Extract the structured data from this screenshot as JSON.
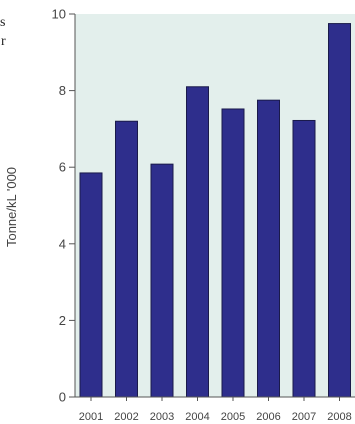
{
  "page": {
    "cropped_fragments": [
      "s",
      "r"
    ]
  },
  "chart_data": {
    "type": "bar",
    "ylabel": "Tonne/kL  '000",
    "xlabel": "",
    "categories": [
      "2001",
      "2002",
      "2003",
      "2004",
      "2005",
      "2006",
      "2007",
      "2008"
    ],
    "values": [
      5.85,
      7.2,
      6.08,
      8.1,
      7.52,
      7.75,
      7.22,
      9.75
    ],
    "ylim": [
      0,
      10
    ],
    "yticks": [
      0,
      2,
      4,
      6,
      8,
      10
    ],
    "grid": false,
    "colors": {
      "bar": "#2e2e8c",
      "bar_edge": "#1a1a4a",
      "plot_background": "#e3efec",
      "axis": "#555555",
      "text": "#444444"
    }
  }
}
